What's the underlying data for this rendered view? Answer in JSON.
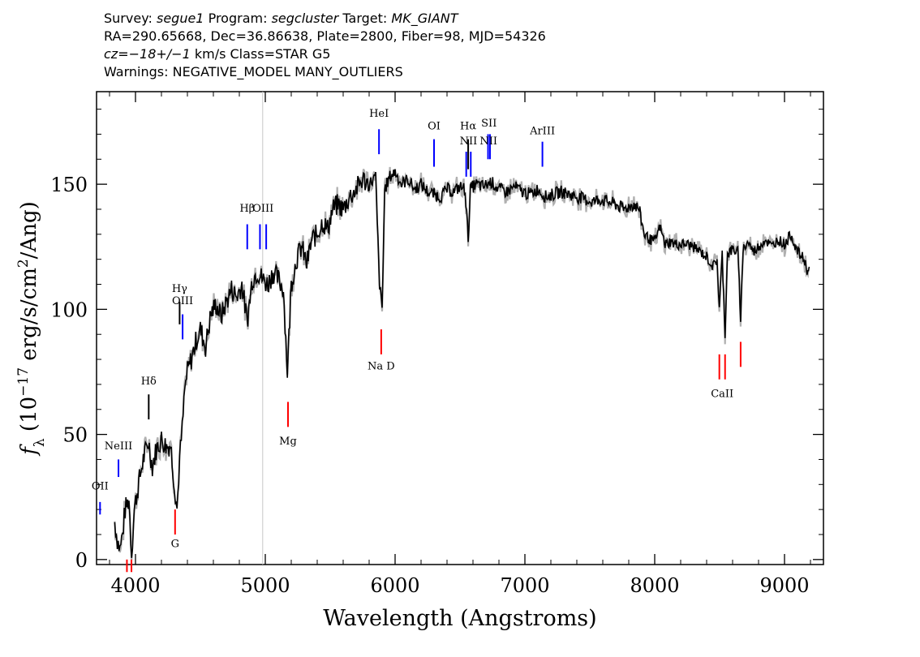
{
  "header": {
    "line1": {
      "survey_label": "Survey:",
      "survey": "segue1",
      "program_label": "Program:",
      "program": "segcluster",
      "target_label": "Target:",
      "target": "MK_GIANT"
    },
    "line2": "RA=290.65668, Dec=36.86638, Plate=2800, Fiber=98, MJD=54326",
    "line3": {
      "cz": "cz=−18+/−1",
      "rest": " km/s Class=STAR G5"
    },
    "line4": "Warnings: NEGATIVE_MODEL MANY_OUTLIERS"
  },
  "chart_data": {
    "type": "line",
    "xlabel": "Wavelength (Angstroms)",
    "ylabel": "f_λ (10^-17 erg/s/cm^2/Ang)",
    "xlim": [
      3700,
      9300
    ],
    "ylim": [
      -2,
      187
    ],
    "xticks": [
      4000,
      5000,
      6000,
      7000,
      8000,
      9000
    ],
    "yticks": [
      0,
      50,
      100,
      150
    ],
    "colors": {
      "spectrum": "#000000",
      "error": "#b0b0b0",
      "emission": "#0000ff",
      "absorption": "#ff0000"
    },
    "spectrum": [
      [
        3840,
        15
      ],
      [
        3860,
        8
      ],
      [
        3880,
        4
      ],
      [
        3900,
        10
      ],
      [
        3920,
        20
      ],
      [
        3950,
        24
      ],
      [
        3970,
        2
      ],
      [
        3990,
        20
      ],
      [
        4030,
        32
      ],
      [
        4060,
        40
      ],
      [
        4100,
        47
      ],
      [
        4130,
        37
      ],
      [
        4160,
        44
      ],
      [
        4200,
        48
      ],
      [
        4240,
        45
      ],
      [
        4270,
        46
      ],
      [
        4300,
        30
      ],
      [
        4320,
        20
      ],
      [
        4340,
        40
      ],
      [
        4360,
        52
      ],
      [
        4380,
        68
      ],
      [
        4400,
        75
      ],
      [
        4430,
        80
      ],
      [
        4470,
        88
      ],
      [
        4500,
        92
      ],
      [
        4540,
        85
      ],
      [
        4580,
        98
      ],
      [
        4620,
        102
      ],
      [
        4660,
        97
      ],
      [
        4700,
        103
      ],
      [
        4740,
        108
      ],
      [
        4780,
        105
      ],
      [
        4820,
        110
      ],
      [
        4860,
        95
      ],
      [
        4900,
        112
      ],
      [
        4940,
        115
      ],
      [
        4980,
        112
      ],
      [
        5020,
        110
      ],
      [
        5060,
        115
      ],
      [
        5100,
        112
      ],
      [
        5140,
        108
      ],
      [
        5170,
        75
      ],
      [
        5200,
        110
      ],
      [
        5240,
        120
      ],
      [
        5280,
        125
      ],
      [
        5320,
        118
      ],
      [
        5360,
        128
      ],
      [
        5400,
        130
      ],
      [
        5440,
        135
      ],
      [
        5480,
        132
      ],
      [
        5520,
        140
      ],
      [
        5560,
        142
      ],
      [
        5600,
        140
      ],
      [
        5650,
        145
      ],
      [
        5700,
        148
      ],
      [
        5750,
        152
      ],
      [
        5800,
        150
      ],
      [
        5850,
        153
      ],
      [
        5880,
        110
      ],
      [
        5900,
        100
      ],
      [
        5920,
        148
      ],
      [
        5960,
        153
      ],
      [
        6000,
        155
      ],
      [
        6050,
        150
      ],
      [
        6100,
        152
      ],
      [
        6150,
        148
      ],
      [
        6200,
        150
      ],
      [
        6250,
        147
      ],
      [
        6300,
        146
      ],
      [
        6350,
        145
      ],
      [
        6400,
        148
      ],
      [
        6450,
        147
      ],
      [
        6500,
        149
      ],
      [
        6540,
        148
      ],
      [
        6563,
        128
      ],
      [
        6580,
        148
      ],
      [
        6620,
        150
      ],
      [
        6680,
        149
      ],
      [
        6740,
        151
      ],
      [
        6800,
        148
      ],
      [
        6860,
        147
      ],
      [
        6920,
        149
      ],
      [
        6980,
        147
      ],
      [
        7040,
        146
      ],
      [
        7100,
        148
      ],
      [
        7160,
        145
      ],
      [
        7220,
        146
      ],
      [
        7280,
        147
      ],
      [
        7340,
        146
      ],
      [
        7400,
        145
      ],
      [
        7460,
        144
      ],
      [
        7520,
        143
      ],
      [
        7580,
        144
      ],
      [
        7640,
        143
      ],
      [
        7700,
        142
      ],
      [
        7760,
        140
      ],
      [
        7800,
        141
      ],
      [
        7840,
        142
      ],
      [
        7880,
        140
      ],
      [
        7920,
        130
      ],
      [
        7960,
        128
      ],
      [
        8000,
        127
      ],
      [
        8040,
        133
      ],
      [
        8080,
        126
      ],
      [
        8120,
        127
      ],
      [
        8160,
        126
      ],
      [
        8200,
        126
      ],
      [
        8250,
        126
      ],
      [
        8300,
        125
      ],
      [
        8350,
        123
      ],
      [
        8400,
        121
      ],
      [
        8450,
        117
      ],
      [
        8480,
        120
      ],
      [
        8498,
        100
      ],
      [
        8520,
        122
      ],
      [
        8542,
        90
      ],
      [
        8560,
        122
      ],
      [
        8600,
        124
      ],
      [
        8640,
        123
      ],
      [
        8662,
        97
      ],
      [
        8680,
        124
      ],
      [
        8720,
        127
      ],
      [
        8760,
        123
      ],
      [
        8800,
        125
      ],
      [
        8850,
        128
      ],
      [
        8900,
        125
      ],
      [
        8950,
        128
      ],
      [
        9000,
        126
      ],
      [
        9050,
        130
      ],
      [
        9100,
        123
      ],
      [
        9150,
        120
      ],
      [
        9180,
        115
      ],
      [
        9190,
        117
      ]
    ],
    "lines": [
      {
        "label": "OII",
        "wl": [
          3727
        ],
        "kind": "emission",
        "y1": 23,
        "y2": 18,
        "label_y": 28
      },
      {
        "label": "NeIII",
        "wl": [
          3869
        ],
        "kind": "emission",
        "y1": 40,
        "y2": 33,
        "label_y": 44
      },
      {
        "label": "Hδ",
        "wl": [
          4102
        ],
        "kind": "black",
        "y1": 66,
        "y2": 56,
        "label_y": 70
      },
      {
        "label": "Hγ",
        "wl": [
          4340
        ],
        "kind": "black",
        "y1": 103,
        "y2": 94,
        "label_y": 107
      },
      {
        "label": "OIII",
        "wl": [
          4363
        ],
        "kind": "emission",
        "y1": 98,
        "y2": 88,
        "label_y": 102
      },
      {
        "label": "Hβ",
        "wl": [
          4861
        ],
        "kind": "emission",
        "y1": 134,
        "y2": 124,
        "label_y": 139
      },
      {
        "label": "OIII",
        "wl": [
          4959,
          5007
        ],
        "kind": "emission",
        "y1": 134,
        "y2": 124,
        "label_y": 139
      },
      {
        "label": "HeI",
        "wl": [
          5876
        ],
        "kind": "emission",
        "y1": 172,
        "y2": 162,
        "label_y": 177
      },
      {
        "label": "OI",
        "wl": [
          6300
        ],
        "kind": "emission",
        "y1": 168,
        "y2": 157,
        "label_y": 172
      },
      {
        "label": "NII",
        "wl": [
          6548,
          6583
        ],
        "kind": "emission",
        "y1": 163,
        "y2": 153,
        "label_y": 166
      },
      {
        "label": "Hα",
        "wl": [
          6563
        ],
        "kind": "black",
        "y1": 168,
        "y2": 156,
        "label_y": 172
      },
      {
        "label": "SII",
        "wl": [
          6716,
          6731
        ],
        "kind": "emission",
        "y1": 170,
        "y2": 160,
        "label_y": 173
      },
      {
        "label": "NII",
        "wl": [
          6720
        ],
        "kind": "none",
        "y1": 0,
        "y2": 0,
        "label_y": 166
      },
      {
        "label": "ArIII",
        "wl": [
          7135
        ],
        "kind": "emission",
        "y1": 167,
        "y2": 157,
        "label_y": 170
      },
      {
        "label": "Na D",
        "wl": [
          5893
        ],
        "kind": "absorption",
        "y1": 92,
        "y2": 82,
        "label_y": 76
      },
      {
        "label": "Mg",
        "wl": [
          5175
        ],
        "kind": "absorption",
        "y1": 63,
        "y2": 53,
        "label_y": 46
      },
      {
        "label": "G",
        "wl": [
          4305
        ],
        "kind": "absorption",
        "y1": 20,
        "y2": 10,
        "label_y": 5
      },
      {
        "label": "CaII",
        "wl": [
          8498,
          8542
        ],
        "kind": "absorption",
        "y1": 82,
        "y2": 72,
        "label_y": 65
      },
      {
        "label": "",
        "wl": [
          8662
        ],
        "kind": "absorption",
        "y1": 87,
        "y2": 77,
        "label_y": 0
      },
      {
        "label": "",
        "wl": [
          3934,
          3969
        ],
        "kind": "absorption",
        "y1": 0,
        "y2": -5,
        "label_y": 0
      }
    ],
    "vertical_marker_wl": 4980,
    "grid": false
  }
}
